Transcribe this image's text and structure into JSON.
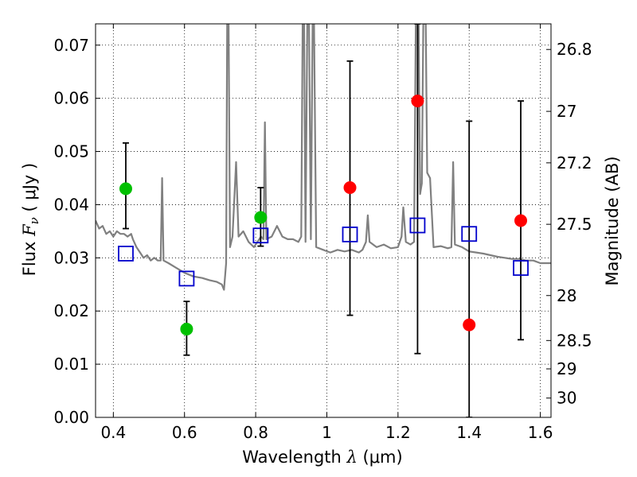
{
  "chart_data": {
    "type": "scatter",
    "xlabel": {
      "prefix": "Wavelength ",
      "symbol": "λ",
      "unit": " (μm)"
    },
    "ylabel": {
      "prefix": "Flux ",
      "symbol": "F",
      "sub": "ν",
      "unit": " ( μJy )"
    },
    "y2label": "Magnitude (AB)",
    "xlim": [
      0.35,
      1.63
    ],
    "ylim": [
      0.0,
      0.074
    ],
    "grid": true,
    "x_ticks": [
      0.4,
      0.6,
      0.8,
      1.0,
      1.2,
      1.4,
      1.6
    ],
    "x_tick_labels": [
      "0.4",
      "0.6",
      "0.8",
      "1",
      "1.2",
      "1.4",
      "1.6"
    ],
    "y_ticks": [
      0.0,
      0.01,
      0.02,
      0.03,
      0.04,
      0.05,
      0.06,
      0.07
    ],
    "y_tick_labels": [
      "0.00",
      "0.01",
      "0.02",
      "0.03",
      "0.04",
      "0.05",
      "0.06",
      "0.07"
    ],
    "y2_ticks": [
      {
        "mag": 26.8,
        "label": "26.8"
      },
      {
        "mag": 27.0,
        "label": "27"
      },
      {
        "mag": 27.2,
        "label": "27.2"
      },
      {
        "mag": 27.5,
        "label": "27.5"
      },
      {
        "mag": 28.0,
        "label": "28"
      },
      {
        "mag": 28.5,
        "label": "28.5"
      },
      {
        "mag": 29.0,
        "label": "29"
      },
      {
        "mag": 30.0,
        "label": "30"
      }
    ],
    "colors": {
      "spectrum": "#808080",
      "green": "#00c000",
      "red": "#ff0000",
      "model": "#0000cc",
      "errorbar": "#000000"
    },
    "series": [
      {
        "marker": "circle",
        "color": "#00c000",
        "points": [
          {
            "x": 0.435,
            "y": 0.043,
            "ylo": 0.0355,
            "yhi": 0.0516
          },
          {
            "x": 0.606,
            "y": 0.0166,
            "ylo": 0.0117,
            "yhi": 0.0218
          },
          {
            "x": 0.814,
            "y": 0.0376,
            "ylo": 0.0322,
            "yhi": 0.0432
          }
        ]
      },
      {
        "marker": "circle",
        "color": "#ff0000",
        "points": [
          {
            "x": 1.065,
            "y": 0.0432,
            "ylo": 0.0192,
            "yhi": 0.067
          },
          {
            "x": 1.255,
            "y": 0.0595,
            "ylo": 0.012,
            "yhi": 0.074
          },
          {
            "x": 1.4,
            "y": 0.0174,
            "ylo": 0.0,
            "yhi": 0.0557
          },
          {
            "x": 1.545,
            "y": 0.037,
            "ylo": 0.0146,
            "yhi": 0.0595
          }
        ]
      },
      {
        "marker": "open-square",
        "color": "#0000cc",
        "points": [
          {
            "x": 0.435,
            "y": 0.0308
          },
          {
            "x": 0.606,
            "y": 0.0261
          },
          {
            "x": 0.814,
            "y": 0.0342
          },
          {
            "x": 1.065,
            "y": 0.0344
          },
          {
            "x": 1.255,
            "y": 0.0361
          },
          {
            "x": 1.4,
            "y": 0.0345
          },
          {
            "x": 1.545,
            "y": 0.0281
          }
        ]
      }
    ],
    "spectrum": [
      [
        0.35,
        0.037
      ],
      [
        0.36,
        0.0355
      ],
      [
        0.37,
        0.036
      ],
      [
        0.38,
        0.0345
      ],
      [
        0.39,
        0.035
      ],
      [
        0.4,
        0.034
      ],
      [
        0.41,
        0.035
      ],
      [
        0.42,
        0.0345
      ],
      [
        0.43,
        0.0345
      ],
      [
        0.44,
        0.034
      ],
      [
        0.45,
        0.0345
      ],
      [
        0.455,
        0.0335
      ],
      [
        0.465,
        0.032
      ],
      [
        0.475,
        0.031
      ],
      [
        0.485,
        0.03
      ],
      [
        0.495,
        0.0305
      ],
      [
        0.505,
        0.0295
      ],
      [
        0.515,
        0.03
      ],
      [
        0.525,
        0.0295
      ],
      [
        0.533,
        0.0295
      ],
      [
        0.537,
        0.045
      ],
      [
        0.541,
        0.0295
      ],
      [
        0.555,
        0.029
      ],
      [
        0.575,
        0.0282
      ],
      [
        0.6,
        0.0272
      ],
      [
        0.625,
        0.0265
      ],
      [
        0.65,
        0.0262
      ],
      [
        0.67,
        0.0258
      ],
      [
        0.69,
        0.0255
      ],
      [
        0.705,
        0.025
      ],
      [
        0.711,
        0.024
      ],
      [
        0.717,
        0.029
      ],
      [
        0.72,
        0.074
      ],
      [
        0.724,
        0.074
      ],
      [
        0.728,
        0.032
      ],
      [
        0.735,
        0.034
      ],
      [
        0.745,
        0.048
      ],
      [
        0.752,
        0.034
      ],
      [
        0.765,
        0.035
      ],
      [
        0.78,
        0.033
      ],
      [
        0.795,
        0.032
      ],
      [
        0.805,
        0.033
      ],
      [
        0.815,
        0.034
      ],
      [
        0.822,
        0.0335
      ],
      [
        0.826,
        0.0555
      ],
      [
        0.83,
        0.0335
      ],
      [
        0.845,
        0.034
      ],
      [
        0.86,
        0.036
      ],
      [
        0.875,
        0.034
      ],
      [
        0.89,
        0.0335
      ],
      [
        0.905,
        0.0335
      ],
      [
        0.92,
        0.033
      ],
      [
        0.928,
        0.034
      ],
      [
        0.932,
        0.074
      ],
      [
        0.936,
        0.074
      ],
      [
        0.94,
        0.033
      ],
      [
        0.945,
        0.074
      ],
      [
        0.95,
        0.074
      ],
      [
        0.955,
        0.0335
      ],
      [
        0.96,
        0.074
      ],
      [
        0.964,
        0.074
      ],
      [
        0.97,
        0.032
      ],
      [
        0.99,
        0.0315
      ],
      [
        1.01,
        0.031
      ],
      [
        1.03,
        0.0315
      ],
      [
        1.05,
        0.0312
      ],
      [
        1.07,
        0.0315
      ],
      [
        1.09,
        0.031
      ],
      [
        1.1,
        0.0315
      ],
      [
        1.11,
        0.033
      ],
      [
        1.115,
        0.038
      ],
      [
        1.12,
        0.033
      ],
      [
        1.14,
        0.032
      ],
      [
        1.16,
        0.0325
      ],
      [
        1.18,
        0.0318
      ],
      [
        1.2,
        0.032
      ],
      [
        1.21,
        0.034
      ],
      [
        1.215,
        0.0395
      ],
      [
        1.222,
        0.033
      ],
      [
        1.235,
        0.0325
      ],
      [
        1.245,
        0.033
      ],
      [
        1.25,
        0.074
      ],
      [
        1.258,
        0.074
      ],
      [
        1.262,
        0.042
      ],
      [
        1.267,
        0.044
      ],
      [
        1.271,
        0.074
      ],
      [
        1.278,
        0.074
      ],
      [
        1.282,
        0.046
      ],
      [
        1.29,
        0.045
      ],
      [
        1.3,
        0.032
      ],
      [
        1.32,
        0.0322
      ],
      [
        1.34,
        0.0318
      ],
      [
        1.35,
        0.032
      ],
      [
        1.355,
        0.048
      ],
      [
        1.36,
        0.0325
      ],
      [
        1.38,
        0.032
      ],
      [
        1.4,
        0.0312
      ],
      [
        1.42,
        0.031
      ],
      [
        1.44,
        0.0308
      ],
      [
        1.46,
        0.0305
      ],
      [
        1.48,
        0.0302
      ],
      [
        1.5,
        0.03
      ],
      [
        1.52,
        0.0298
      ],
      [
        1.54,
        0.0298
      ],
      [
        1.56,
        0.0295
      ],
      [
        1.58,
        0.0295
      ],
      [
        1.6,
        0.029
      ],
      [
        1.63,
        0.029
      ]
    ]
  }
}
